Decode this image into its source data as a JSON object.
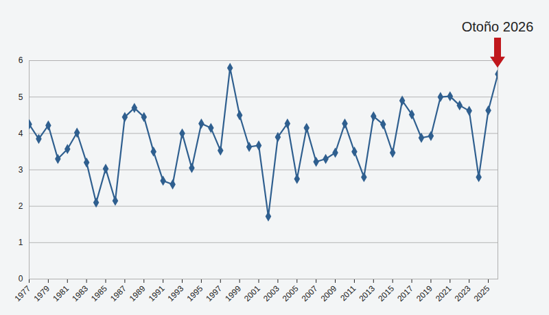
{
  "chart_data": {
    "type": "line",
    "x": [
      1977,
      1978,
      1979,
      1980,
      1981,
      1982,
      1983,
      1984,
      1985,
      1986,
      1987,
      1988,
      1989,
      1990,
      1991,
      1992,
      1993,
      1994,
      1995,
      1996,
      1997,
      1998,
      1999,
      2000,
      2001,
      2002,
      2003,
      2004,
      2005,
      2006,
      2007,
      2008,
      2009,
      2010,
      2011,
      2012,
      2013,
      2014,
      2015,
      2016,
      2017,
      2018,
      2019,
      2020,
      2021,
      2022,
      2023,
      2024,
      2025,
      2026
    ],
    "values": [
      4.25,
      3.85,
      4.22,
      3.3,
      3.57,
      4.02,
      3.2,
      2.1,
      3.03,
      2.15,
      4.45,
      4.7,
      4.45,
      3.5,
      2.7,
      2.6,
      4.0,
      3.05,
      4.27,
      4.15,
      3.53,
      5.8,
      4.5,
      3.63,
      3.67,
      1.72,
      3.9,
      4.27,
      2.75,
      4.15,
      3.22,
      3.3,
      3.47,
      4.27,
      3.5,
      2.8,
      4.47,
      4.25,
      3.47,
      4.9,
      4.52,
      3.88,
      3.93,
      5.0,
      5.02,
      4.77,
      4.62,
      2.8,
      4.63,
      5.63
    ],
    "color": "#2f5f8f",
    "marker": "diamond",
    "xlim": [
      1977,
      2026
    ],
    "xticks": [
      1977,
      1979,
      1981,
      1983,
      1985,
      1987,
      1989,
      1991,
      1993,
      1995,
      1997,
      1999,
      2001,
      2003,
      2005,
      2007,
      2009,
      2011,
      2013,
      2015,
      2017,
      2019,
      2021,
      2023,
      2025
    ],
    "ylim": [
      0,
      6
    ],
    "yticks": [
      0,
      1,
      2,
      3,
      4,
      5,
      6
    ],
    "grid": true,
    "annotations": [
      {
        "text": "Otoño 2026",
        "x": 2026,
        "y": 5.63,
        "color": "#c0171c"
      }
    ]
  }
}
